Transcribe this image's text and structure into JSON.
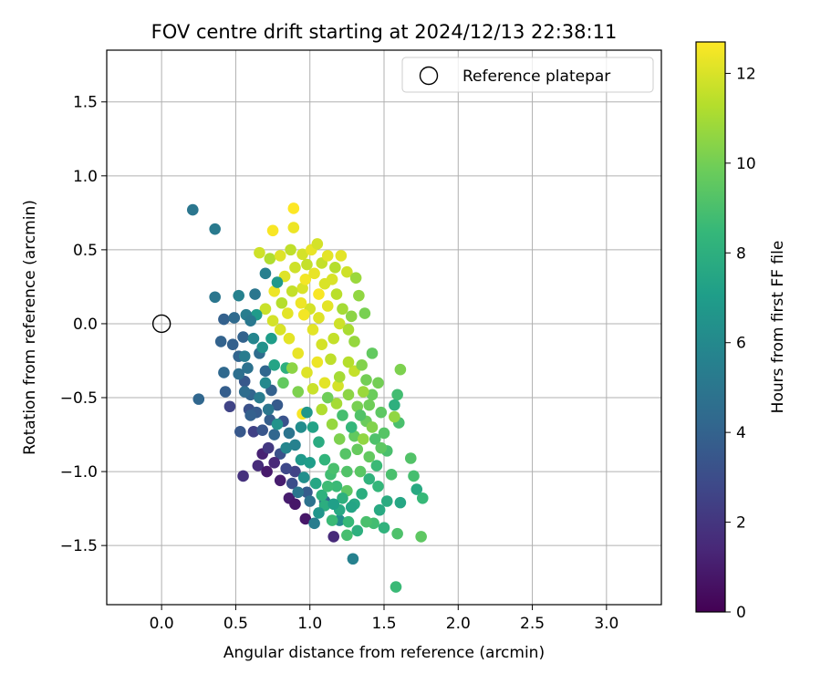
{
  "chart_data": {
    "type": "scatter",
    "title": "FOV centre drift starting at 2024/12/13 22:38:11",
    "xlabel": "Angular distance from reference (arcmin)",
    "ylabel": "Rotation from reference (arcmin)",
    "xlim": [
      -0.37,
      3.37
    ],
    "ylim": [
      -1.9,
      1.85
    ],
    "xticks": [
      0.0,
      0.5,
      1.0,
      1.5,
      2.0,
      2.5,
      3.0
    ],
    "xtick_labels": [
      "0.0",
      "0.5",
      "1.0",
      "1.5",
      "2.0",
      "2.5",
      "3.0"
    ],
    "yticks": [
      -1.5,
      -1.0,
      -0.5,
      0.0,
      0.5,
      1.0,
      1.5
    ],
    "ytick_labels": [
      "−1.5",
      "−1.0",
      "−0.5",
      "0.0",
      "0.5",
      "1.0",
      "1.5"
    ],
    "grid": true,
    "legend": {
      "label": "Reference platepar",
      "position": "upper right"
    },
    "reference_point": {
      "x": 0.0,
      "y": 0.0
    },
    "colorbar": {
      "label": "Hours from first FF file",
      "colormap": "viridis",
      "range": [
        0,
        12.7
      ],
      "ticks": [
        0,
        2,
        4,
        6,
        8,
        10,
        12
      ],
      "tick_labels": [
        "0",
        "2",
        "4",
        "6",
        "8",
        "10",
        "12"
      ]
    },
    "series": [
      {
        "points": [
          [
            0.21,
            0.77,
            5.0
          ],
          [
            0.36,
            0.64,
            5.2
          ],
          [
            0.36,
            0.18,
            5.0
          ],
          [
            0.25,
            -0.51,
            4.2
          ],
          [
            0.42,
            0.03,
            3.9
          ],
          [
            0.4,
            -0.12,
            4.0
          ],
          [
            0.42,
            -0.33,
            4.3
          ],
          [
            0.43,
            -0.46,
            3.8
          ],
          [
            0.46,
            -0.56,
            2.6
          ],
          [
            0.53,
            -0.73,
            3.5
          ],
          [
            0.55,
            -1.03,
            1.8
          ],
          [
            0.49,
            0.04,
            4.4
          ],
          [
            0.52,
            0.19,
            5.6
          ],
          [
            0.55,
            -0.09,
            4.0
          ],
          [
            0.56,
            -0.39,
            3.5
          ],
          [
            0.59,
            -0.58,
            3.2
          ],
          [
            0.63,
            0.2,
            5.0
          ],
          [
            0.62,
            -0.73,
            2.5
          ],
          [
            0.65,
            -0.96,
            1.6
          ],
          [
            0.68,
            -0.88,
            1.2
          ],
          [
            0.71,
            -1.0,
            0.9
          ],
          [
            0.86,
            -1.18,
            1.0
          ],
          [
            0.9,
            -1.22,
            0.8
          ],
          [
            0.97,
            -1.32,
            0.8
          ],
          [
            1.16,
            -1.44,
            1.5
          ],
          [
            1.29,
            -1.59,
            5.6
          ],
          [
            1.03,
            -1.35,
            5.4
          ],
          [
            0.73,
            -0.65,
            3.8
          ],
          [
            0.8,
            -0.88,
            3.2
          ],
          [
            0.76,
            -0.75,
            4.2
          ],
          [
            0.84,
            -0.84,
            5.8
          ],
          [
            0.9,
            -1.0,
            2.6
          ],
          [
            0.98,
            -1.14,
            3.7
          ],
          [
            1.1,
            -1.2,
            4.3
          ],
          [
            1.2,
            -1.33,
            6.2
          ],
          [
            0.94,
            -0.92,
            6.8
          ],
          [
            0.66,
            0.48,
            11.8
          ],
          [
            0.73,
            0.44,
            11.2
          ],
          [
            0.75,
            0.63,
            12.6
          ],
          [
            0.89,
            0.78,
            12.7
          ],
          [
            0.89,
            0.65,
            12.4
          ],
          [
            0.8,
            0.46,
            12.1
          ],
          [
            0.87,
            0.5,
            11.5
          ],
          [
            0.95,
            0.47,
            11.9
          ],
          [
            1.01,
            0.5,
            12.3
          ],
          [
            1.05,
            0.54,
            11.9
          ],
          [
            1.08,
            0.41,
            11.6
          ],
          [
            1.15,
            0.3,
            12.0
          ],
          [
            1.21,
            0.46,
            12.2
          ],
          [
            1.25,
            0.35,
            11.8
          ],
          [
            1.33,
            0.19,
            10.6
          ],
          [
            1.37,
            0.07,
            10.1
          ],
          [
            1.42,
            -0.2,
            9.6
          ],
          [
            1.61,
            -0.31,
            10.2
          ],
          [
            1.59,
            -0.48,
            8.8
          ],
          [
            1.57,
            -0.55,
            8.0
          ],
          [
            1.6,
            -0.67,
            9.0
          ],
          [
            1.57,
            -0.63,
            10.6
          ],
          [
            1.68,
            -0.91,
            9.2
          ],
          [
            1.7,
            -1.03,
            8.9
          ],
          [
            1.72,
            -1.12,
            7.7
          ],
          [
            1.76,
            -1.18,
            8.5
          ],
          [
            1.75,
            -1.44,
            9.5
          ],
          [
            1.59,
            -1.42,
            9.1
          ],
          [
            1.58,
            -1.78,
            8.6
          ],
          [
            1.61,
            -1.21,
            7.5
          ],
          [
            1.43,
            -1.35,
            8.8
          ],
          [
            1.5,
            -1.38,
            8.2
          ],
          [
            1.47,
            -1.26,
            7.7
          ],
          [
            1.38,
            -1.34,
            9.0
          ],
          [
            1.25,
            -1.43,
            8.9
          ],
          [
            1.2,
            -1.26,
            7.6
          ],
          [
            1.15,
            -1.33,
            8.6
          ],
          [
            1.1,
            -1.23,
            7.9
          ],
          [
            1.25,
            -1.13,
            9.5
          ],
          [
            0.95,
            -0.61,
            12.6
          ],
          [
            1.05,
            -0.26,
            12.4
          ],
          [
            1.1,
            -0.4,
            12.2
          ],
          [
            1.19,
            -0.42,
            11.9
          ],
          [
            1.3,
            -0.32,
            11.6
          ],
          [
            0.85,
            0.07,
            12.2
          ],
          [
            0.95,
            0.24,
            12.0
          ],
          [
            1.0,
            0.1,
            11.9
          ],
          [
            1.12,
            0.12,
            12.2
          ],
          [
            1.2,
            0.0,
            11.8
          ],
          [
            1.26,
            -0.04,
            11.1
          ],
          [
            1.3,
            -0.12,
            10.7
          ],
          [
            1.35,
            -0.28,
            10.3
          ],
          [
            1.38,
            -0.38,
            10.0
          ],
          [
            1.42,
            -0.48,
            9.8
          ],
          [
            1.48,
            -0.6,
            9.5
          ],
          [
            1.5,
            -0.74,
            9.3
          ],
          [
            1.52,
            -0.86,
            9.0
          ],
          [
            1.45,
            -0.96,
            8.6
          ],
          [
            1.4,
            -1.05,
            8.2
          ],
          [
            1.35,
            -1.15,
            7.9
          ],
          [
            1.3,
            -1.22,
            7.6
          ],
          [
            1.25,
            -1.0,
            9.2
          ],
          [
            1.32,
            -0.85,
            9.7
          ],
          [
            1.2,
            -0.78,
            10.2
          ],
          [
            1.15,
            -0.68,
            10.7
          ],
          [
            1.08,
            -0.58,
            11.2
          ],
          [
            1.02,
            -0.44,
            11.7
          ],
          [
            0.98,
            -0.33,
            12.1
          ],
          [
            0.92,
            -0.2,
            12.3
          ],
          [
            0.86,
            -0.1,
            12.2
          ],
          [
            0.8,
            -0.04,
            12.0
          ],
          [
            0.75,
            0.02,
            11.9
          ],
          [
            0.7,
            0.1,
            11.7
          ],
          [
            0.76,
            0.22,
            12.4
          ],
          [
            0.83,
            0.32,
            12.1
          ],
          [
            0.9,
            0.38,
            11.8
          ],
          [
            0.97,
            0.3,
            12.5
          ],
          [
            1.03,
            0.34,
            12.3
          ],
          [
            1.1,
            0.27,
            12.0
          ],
          [
            1.18,
            0.2,
            11.4
          ],
          [
            1.22,
            0.1,
            11.0
          ],
          [
            1.28,
            0.05,
            10.5
          ],
          [
            0.62,
            -0.1,
            5.8
          ],
          [
            0.66,
            -0.2,
            4.5
          ],
          [
            0.7,
            -0.32,
            4.2
          ],
          [
            0.74,
            -0.45,
            3.9
          ],
          [
            0.78,
            -0.55,
            3.6
          ],
          [
            0.82,
            -0.66,
            3.3
          ],
          [
            0.86,
            -0.74,
            4.9
          ],
          [
            0.9,
            -0.82,
            5.6
          ],
          [
            0.94,
            -0.7,
            6.2
          ],
          [
            0.98,
            -0.6,
            6.7
          ],
          [
            1.02,
            -0.7,
            7.3
          ],
          [
            1.06,
            -0.8,
            7.8
          ],
          [
            1.1,
            -0.92,
            8.3
          ],
          [
            1.14,
            -1.02,
            8.8
          ],
          [
            1.18,
            -1.1,
            8.6
          ],
          [
            1.22,
            -1.18,
            8.0
          ],
          [
            1.28,
            -1.24,
            7.4
          ],
          [
            1.34,
            -1.0,
            9.4
          ],
          [
            1.4,
            -0.9,
            9.6
          ],
          [
            1.44,
            -0.78,
            9.1
          ],
          [
            1.38,
            -0.66,
            9.8
          ],
          [
            1.32,
            -0.56,
            10.1
          ],
          [
            1.26,
            -0.48,
            10.5
          ],
          [
            1.2,
            -0.36,
            11.0
          ],
          [
            1.14,
            -0.24,
            11.5
          ],
          [
            1.08,
            -0.14,
            11.9
          ],
          [
            1.02,
            -0.04,
            12.2
          ],
          [
            0.96,
            0.06,
            12.5
          ],
          [
            0.58,
            -0.3,
            4.8
          ],
          [
            0.6,
            -0.48,
            4.1
          ],
          [
            0.64,
            -0.6,
            3.7
          ],
          [
            0.68,
            -0.72,
            3.4
          ],
          [
            0.72,
            -0.84,
            2.1
          ],
          [
            0.76,
            -0.94,
            1.4
          ],
          [
            0.8,
            -1.06,
            1.0
          ],
          [
            0.84,
            -0.98,
            2.8
          ],
          [
            0.88,
            -1.08,
            3.0
          ],
          [
            0.92,
            -1.14,
            5.0
          ],
          [
            0.96,
            -1.04,
            6.3
          ],
          [
            1.0,
            -0.94,
            7.0
          ],
          [
            1.04,
            -1.08,
            7.5
          ],
          [
            1.08,
            -1.16,
            8.1
          ],
          [
            1.12,
            -1.1,
            8.7
          ],
          [
            1.16,
            -0.98,
            9.0
          ],
          [
            1.24,
            -0.88,
            9.3
          ],
          [
            1.3,
            -0.76,
            9.6
          ],
          [
            1.36,
            -0.46,
            10.8
          ],
          [
            1.26,
            -0.26,
            11.3
          ],
          [
            1.16,
            -0.1,
            11.6
          ],
          [
            1.06,
            0.04,
            12.1
          ],
          [
            0.94,
            0.14,
            12.4
          ],
          [
            0.88,
            0.22,
            11.6
          ],
          [
            0.81,
            0.14,
            11.3
          ],
          [
            0.74,
            -0.1,
            7.0
          ],
          [
            0.68,
            -0.16,
            6.4
          ],
          [
            0.64,
            0.06,
            6.9
          ],
          [
            0.57,
            0.06,
            5.4
          ],
          [
            0.48,
            -0.14,
            3.9
          ],
          [
            0.52,
            -0.22,
            4.1
          ],
          [
            0.56,
            -0.46,
            4.5
          ],
          [
            0.6,
            -0.62,
            3.9
          ],
          [
            1.46,
            -1.1,
            8.4
          ],
          [
            1.52,
            -1.2,
            7.8
          ],
          [
            1.55,
            -1.02,
            9.0
          ],
          [
            1.48,
            -0.84,
            9.5
          ],
          [
            1.42,
            -0.7,
            10.3
          ],
          [
            1.36,
            -0.78,
            10.6
          ],
          [
            1.18,
            -0.54,
            11.0
          ],
          [
            0.92,
            -0.46,
            10.2
          ],
          [
            0.84,
            -0.3,
            8.0
          ],
          [
            0.76,
            -0.28,
            7.4
          ],
          [
            0.7,
            -0.4,
            6.0
          ],
          [
            0.66,
            -0.5,
            5.3
          ],
          [
            0.72,
            -0.58,
            5.0
          ],
          [
            0.78,
            -0.68,
            6.5
          ],
          [
            0.82,
            -0.4,
            9.6
          ],
          [
            0.88,
            -0.3,
            10.5
          ],
          [
            1.12,
            -0.5,
            9.9
          ],
          [
            1.22,
            -0.62,
            8.9
          ],
          [
            1.28,
            -0.7,
            8.4
          ],
          [
            1.34,
            -0.62,
            9.2
          ],
          [
            1.4,
            -0.55,
            9.9
          ],
          [
            1.46,
            -0.4,
            10.0
          ],
          [
            1.12,
            0.46,
            12.2
          ],
          [
            1.17,
            0.38,
            11.3
          ],
          [
            1.31,
            0.31,
            10.8
          ],
          [
            1.06,
            0.2,
            12.6
          ],
          [
            0.98,
            0.4,
            11.6
          ],
          [
            0.7,
            0.34,
            5.5
          ],
          [
            0.78,
            0.28,
            6.8
          ],
          [
            0.6,
            0.02,
            5.1
          ],
          [
            0.56,
            -0.22,
            5.3
          ],
          [
            0.52,
            -0.34,
            4.6
          ],
          [
            1.0,
            -1.2,
            4.8
          ],
          [
            1.06,
            -1.28,
            6.6
          ],
          [
            1.16,
            -1.22,
            7.1
          ],
          [
            1.26,
            -1.34,
            8.5
          ],
          [
            1.32,
            -1.4,
            8.0
          ]
        ]
      }
    ]
  }
}
